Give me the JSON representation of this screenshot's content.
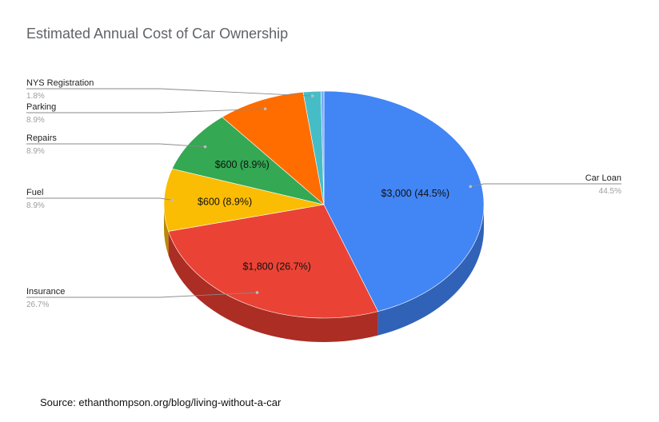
{
  "chart_data": {
    "type": "pie",
    "title": "Estimated Annual Cost of Car Ownership",
    "three_d": true,
    "slices": [
      {
        "name": "Car Loan",
        "value": 3000,
        "value_label": "$3,000 (44.5%)",
        "percent_label": "44.5%",
        "color": "#4285f4",
        "side_color": "#3062b8"
      },
      {
        "name": "Insurance",
        "value": 1800,
        "value_label": "$1,800 (26.7%)",
        "percent_label": "26.7%",
        "color": "#ea4335",
        "side_color": "#ab2d24"
      },
      {
        "name": "Fuel",
        "value": 600,
        "value_label": "$600 (8.9%)",
        "percent_label": "8.9%",
        "color": "#fbbc04",
        "side_color": "#b88a04"
      },
      {
        "name": "Repairs",
        "value": 600,
        "value_label": "$600 (8.9%)",
        "percent_label": "8.9%",
        "color": "#34a853",
        "side_color": "#237a3b"
      },
      {
        "name": "Parking",
        "value": 600,
        "value_label": "",
        "percent_label": "8.9%",
        "color": "#ff6d01",
        "side_color": "#bf5000"
      },
      {
        "name": "NYS Registration",
        "value": 120,
        "value_label": "",
        "percent_label": "1.8%",
        "color": "#46bdc6",
        "side_color": "#2f8a91"
      },
      {
        "name": "",
        "value": 20,
        "value_label": "",
        "percent_label": "",
        "color": "#7baaf7",
        "side_color": "#5a84c8"
      }
    ]
  },
  "source": "Source: ethanthompson.org/blog/living-without-a-car"
}
